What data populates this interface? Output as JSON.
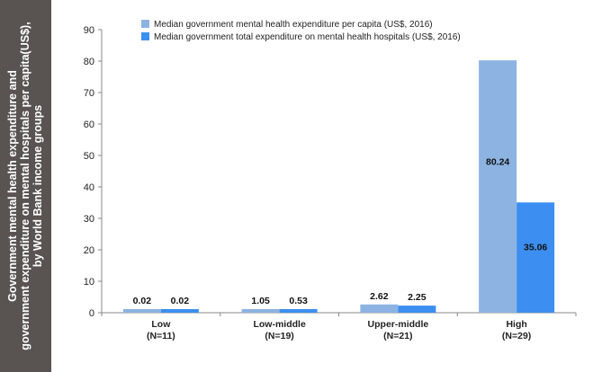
{
  "side_title": {
    "line1": "Government mental health expenditure and",
    "line2": "government expenditure on mental hospitals per capita(US$),",
    "line3": "by World Bank income groups"
  },
  "colors": {
    "panel": "#595451",
    "series1": "#8db3e2",
    "series2": "#3c8ff0"
  },
  "chart_data": {
    "type": "bar",
    "categories": [
      "Low\n(N=11)",
      "Low-middle\n(N=19)",
      "Upper-middle\n(N=21)",
      "High\n(N=29)"
    ],
    "category_lines": [
      [
        "Low",
        "(N=11)"
      ],
      [
        "Low-middle",
        "(N=19)"
      ],
      [
        "Upper-middle",
        "(N=21)"
      ],
      [
        "High",
        "(N=29)"
      ]
    ],
    "series": [
      {
        "name": "Median government mental health expenditure per capita (US$, 2016)",
        "values": [
          0.02,
          1.05,
          2.62,
          80.24
        ],
        "labels": [
          "0.02",
          "1.05",
          "2.62",
          "80.24"
        ]
      },
      {
        "name": "Median government total expenditure on mental health hospitals (US$, 2016)",
        "values": [
          0.02,
          0.53,
          2.25,
          35.06
        ],
        "labels": [
          "0.02",
          "0.53",
          "2.25",
          "35.06"
        ]
      }
    ],
    "ylim": [
      0,
      90
    ],
    "yticks": [
      0,
      10,
      20,
      30,
      40,
      50,
      60,
      70,
      80,
      90
    ],
    "grid": false,
    "legend_position": "top-left",
    "xlabel": "",
    "ylabel": ""
  }
}
